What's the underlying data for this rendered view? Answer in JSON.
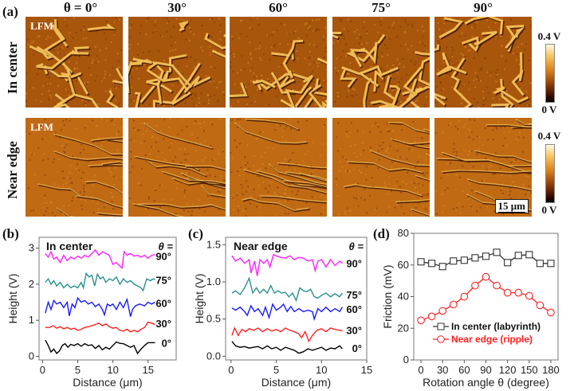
{
  "figure": {
    "panel_a_label": "(a)",
    "panel_b_label": "(b)",
    "panel_c_label": "(c)",
    "panel_d_label": "(d)",
    "column_titles": [
      "θ = 0°",
      "30°",
      "60°",
      "75°",
      "90°"
    ],
    "row_titles": [
      "In center",
      "Near edge"
    ],
    "lfm_label": "LFM",
    "colorbar_top": "0.4 V",
    "colorbar_bottom": "0 V",
    "scale_bar": "15 μm",
    "colors": {
      "afm_base": "#b8620f",
      "afm_light": "#f5c35a",
      "afm_dark": "#3a1200"
    }
  },
  "chart_data": [
    {
      "id": "b",
      "type": "line",
      "title": "In center",
      "legend_header": "θ =",
      "xlabel": "Distance (μm)",
      "ylabel": "Height (V)",
      "xlim": [
        -0.5,
        19
      ],
      "ylim": [
        -0.1,
        3.3
      ],
      "xticks": [
        0,
        5,
        10,
        15
      ],
      "yticks": [
        0,
        1,
        2,
        3
      ],
      "series": [
        {
          "name": "0°",
          "color": "#000000",
          "x": [
            0.4,
            0.8,
            1.2,
            1.6,
            2.0,
            2.4,
            2.8,
            3.2,
            3.6,
            4.0,
            4.5,
            5.0,
            5.5,
            6.0,
            6.5,
            7.0,
            7.5,
            8.0,
            8.5,
            9.0,
            9.5,
            10.0,
            10.5,
            11.0,
            11.5,
            12.0,
            12.5,
            13.0,
            13.5,
            14.0,
            14.5,
            15.0,
            15.5,
            16.0
          ],
          "y": [
            0.45,
            0.3,
            0.12,
            0.2,
            0.08,
            0.15,
            0.3,
            0.35,
            0.25,
            0.33,
            0.3,
            0.35,
            0.28,
            0.35,
            0.3,
            0.32,
            0.22,
            0.3,
            0.18,
            0.25,
            0.2,
            0.3,
            0.4,
            0.36,
            0.35,
            0.3,
            0.25,
            0.3,
            0.08,
            0.2,
            0.3,
            0.38,
            0.38,
            0.38
          ]
        },
        {
          "name": "30°",
          "color": "#ff2020",
          "x": [
            0.4,
            1.0,
            1.5,
            2.0,
            2.5,
            3.0,
            3.5,
            4.0,
            4.5,
            5.0,
            5.5,
            6.0,
            6.5,
            7.0,
            7.5,
            8.0,
            8.5,
            9.0,
            9.5,
            10.0,
            10.5,
            11.0,
            11.5,
            12.0,
            12.5,
            13.0,
            13.5,
            14.0,
            14.5,
            15.0,
            15.5,
            16.0
          ],
          "y": [
            0.8,
            0.8,
            0.85,
            0.78,
            0.82,
            0.76,
            0.8,
            0.75,
            0.78,
            0.72,
            0.75,
            0.8,
            0.82,
            0.85,
            0.88,
            0.92,
            0.85,
            0.9,
            0.82,
            0.78,
            0.8,
            0.72,
            0.7,
            0.75,
            0.68,
            0.72,
            0.68,
            0.75,
            0.8,
            0.95,
            0.92,
            0.88
          ]
        },
        {
          "name": "60°",
          "color": "#1a1aff",
          "x": [
            0.4,
            0.8,
            1.2,
            1.6,
            2.0,
            2.5,
            3.0,
            3.5,
            3.8,
            4.2,
            4.6,
            5.0,
            5.5,
            6.0,
            6.5,
            7.0,
            7.5,
            8.0,
            8.5,
            8.8,
            9.2,
            9.6,
            10.0,
            10.5,
            11.0,
            11.5,
            12.0,
            12.5,
            12.8,
            13.2,
            13.8,
            14.5,
            15.0,
            15.5,
            16.0
          ],
          "y": [
            1.2,
            1.5,
            1.3,
            1.55,
            1.45,
            1.5,
            1.35,
            1.5,
            1.12,
            1.45,
            1.35,
            1.62,
            1.5,
            1.55,
            1.45,
            1.5,
            1.38,
            1.45,
            1.3,
            1.15,
            1.45,
            1.4,
            1.45,
            1.3,
            1.5,
            1.35,
            1.58,
            1.1,
            1.3,
            1.4,
            1.45,
            1.4,
            1.5,
            1.45,
            1.5
          ]
        },
        {
          "name": "75°",
          "color": "#2a9090",
          "x": [
            0.4,
            0.8,
            1.2,
            1.6,
            2.0,
            2.5,
            3.0,
            3.5,
            4.0,
            4.5,
            5.0,
            5.5,
            5.8,
            6.2,
            6.6,
            7.0,
            7.4,
            7.8,
            8.2,
            8.6,
            9.0,
            9.5,
            10.0,
            10.5,
            11.0,
            11.5,
            12.0,
            12.5,
            13.0,
            13.5,
            14.0,
            14.3,
            14.8,
            15.3,
            15.8,
            16.0
          ],
          "y": [
            2.05,
            2.15,
            2.0,
            2.1,
            1.95,
            2.05,
            1.9,
            2.0,
            1.9,
            1.95,
            1.9,
            2.05,
            1.9,
            2.3,
            2.2,
            2.25,
            1.95,
            2.28,
            2.15,
            2.2,
            2.05,
            2.15,
            2.1,
            2.2,
            2.0,
            2.15,
            2.05,
            2.1,
            2.0,
            1.95,
            1.9,
            1.82,
            2.15,
            2.1,
            2.15,
            2.12
          ]
        },
        {
          "name": "90°",
          "color": "#ff20ff",
          "x": [
            0.4,
            0.8,
            1.2,
            1.6,
            2.0,
            2.5,
            3.0,
            3.5,
            4.0,
            4.5,
            5.0,
            5.5,
            6.0,
            6.5,
            7.0,
            7.5,
            8.0,
            8.5,
            9.0,
            9.5,
            10.0,
            10.5,
            11.0,
            11.3,
            11.6,
            12.0,
            12.5,
            13.0,
            13.5,
            14.0,
            14.5,
            15.0,
            15.5,
            16.0
          ],
          "y": [
            2.85,
            2.75,
            2.9,
            2.7,
            2.75,
            2.6,
            2.8,
            2.65,
            2.75,
            2.7,
            2.78,
            2.72,
            2.8,
            2.75,
            2.85,
            2.95,
            2.8,
            2.9,
            2.85,
            2.8,
            2.55,
            2.6,
            2.5,
            2.45,
            2.9,
            2.8,
            2.85,
            2.78,
            2.8,
            2.75,
            2.8,
            2.72,
            2.8,
            2.82
          ]
        }
      ]
    },
    {
      "id": "c",
      "type": "line",
      "title": "Near edge",
      "legend_header": "θ =",
      "xlabel": "Distance (μm)",
      "ylabel": "Height (V)",
      "xlim": [
        -0.6,
        15
      ],
      "ylim": [
        -0.05,
        1.6
      ],
      "xticks": [
        0,
        5,
        10,
        15
      ],
      "yticks": [
        0.0,
        0.5,
        1.0,
        1.5
      ],
      "series": [
        {
          "name": "0°",
          "color": "#000000",
          "x": [
            0.1,
            0.5,
            1.0,
            1.5,
            2.0,
            2.5,
            3.0,
            3.5,
            4.0,
            4.5,
            5.0,
            5.5,
            6.0,
            6.5,
            7.0,
            7.5,
            8.0,
            8.5,
            9.0,
            9.5,
            10.0,
            10.5,
            11.0,
            11.5,
            12.0,
            12.3
          ],
          "y": [
            0.2,
            0.14,
            0.12,
            0.13,
            0.11,
            0.12,
            0.13,
            0.1,
            0.14,
            0.1,
            0.12,
            0.08,
            0.12,
            0.1,
            0.08,
            0.04,
            0.06,
            0.1,
            0.08,
            0.1,
            0.12,
            0.08,
            0.11,
            0.1,
            0.14,
            0.1
          ]
        },
        {
          "name": "30°",
          "color": "#ff2020",
          "x": [
            0.1,
            0.4,
            0.8,
            1.2,
            1.6,
            2.0,
            2.5,
            3.0,
            3.5,
            4.0,
            4.5,
            5.0,
            5.5,
            6.0,
            6.5,
            7.0,
            7.5,
            7.8,
            8.2,
            8.6,
            9.0,
            9.5,
            10.0,
            10.5,
            11.0,
            11.5,
            12.0,
            12.3
          ],
          "y": [
            0.28,
            0.38,
            0.28,
            0.36,
            0.33,
            0.37,
            0.35,
            0.38,
            0.33,
            0.37,
            0.34,
            0.36,
            0.33,
            0.38,
            0.35,
            0.33,
            0.3,
            0.25,
            0.33,
            0.2,
            0.28,
            0.35,
            0.37,
            0.33,
            0.38,
            0.36,
            0.35,
            0.34
          ]
        },
        {
          "name": "60°",
          "color": "#1a1aff",
          "x": [
            0.1,
            0.5,
            1.0,
            1.5,
            1.8,
            2.2,
            2.6,
            3.0,
            3.5,
            3.8,
            4.2,
            4.6,
            5.0,
            5.5,
            5.8,
            6.2,
            6.6,
            7.0,
            7.5,
            8.0,
            8.5,
            9.0,
            9.2,
            9.6,
            10.0,
            10.5,
            11.0,
            11.5,
            12.0,
            12.3
          ],
          "y": [
            0.65,
            0.62,
            0.66,
            0.6,
            0.55,
            0.68,
            0.6,
            0.64,
            0.55,
            0.66,
            0.52,
            0.7,
            0.62,
            0.66,
            0.7,
            0.6,
            0.67,
            0.6,
            0.64,
            0.6,
            0.62,
            0.6,
            0.5,
            0.64,
            0.6,
            0.66,
            0.6,
            0.64,
            0.6,
            0.66
          ]
        },
        {
          "name": "75°",
          "color": "#2a9090",
          "x": [
            0.1,
            0.5,
            1.0,
            1.5,
            2.0,
            2.4,
            2.8,
            3.2,
            3.6,
            4.0,
            4.4,
            4.8,
            5.2,
            5.6,
            6.0,
            6.4,
            6.8,
            7.2,
            7.6,
            8.0,
            8.4,
            8.8,
            9.2,
            9.6,
            10.0,
            10.5,
            11.0,
            11.5,
            12.0,
            12.3
          ],
          "y": [
            0.85,
            0.88,
            0.83,
            0.92,
            1.05,
            0.85,
            0.92,
            0.85,
            0.9,
            0.85,
            0.95,
            0.85,
            0.88,
            0.85,
            0.86,
            0.8,
            0.85,
            0.75,
            0.92,
            0.88,
            0.87,
            0.9,
            0.8,
            0.78,
            0.82,
            0.85,
            0.8,
            0.84,
            0.8,
            0.85
          ]
        },
        {
          "name": "90°",
          "color": "#ff20ff",
          "x": [
            0.1,
            0.5,
            1.0,
            1.5,
            2.0,
            2.2,
            2.6,
            2.9,
            3.2,
            3.6,
            4.0,
            4.3,
            4.7,
            5.0,
            5.5,
            6.0,
            6.5,
            7.0,
            7.5,
            8.0,
            8.5,
            9.0,
            9.3,
            9.6,
            10.0,
            10.5,
            11.0,
            11.5,
            12.0,
            12.3
          ],
          "y": [
            1.35,
            1.28,
            1.32,
            1.25,
            1.3,
            1.12,
            1.28,
            1.08,
            1.3,
            1.25,
            1.3,
            1.2,
            1.37,
            1.35,
            1.33,
            1.32,
            1.35,
            1.3,
            1.33,
            1.32,
            1.28,
            1.3,
            1.15,
            1.28,
            1.3,
            1.2,
            1.3,
            1.22,
            1.28,
            1.25
          ]
        }
      ]
    },
    {
      "id": "d",
      "type": "line",
      "xlabel": "Rotation angle θ (degree)",
      "ylabel": "Friction (mV)",
      "xlim": [
        -10,
        190
      ],
      "ylim": [
        0,
        80
      ],
      "xticks": [
        0,
        30,
        60,
        90,
        120,
        150,
        180
      ],
      "yticks": [
        0,
        20,
        40,
        60,
        80
      ],
      "legend_position": "lower-center",
      "x": [
        0,
        15,
        30,
        45,
        60,
        75,
        90,
        105,
        120,
        135,
        150,
        165,
        180
      ],
      "series": [
        {
          "name": "In center (labyrinth)",
          "color": "#333333",
          "marker": "square",
          "values": [
            62,
            61,
            59,
            62.5,
            63,
            64.5,
            65.5,
            68,
            61.5,
            66,
            66.5,
            61,
            61
          ]
        },
        {
          "name": "Near edge (ripple)",
          "color": "#ff2020",
          "marker": "circle",
          "values": [
            25,
            27.5,
            31,
            35,
            40,
            47,
            52.5,
            47,
            42.5,
            42.5,
            40.5,
            34.5,
            30
          ]
        }
      ]
    }
  ]
}
